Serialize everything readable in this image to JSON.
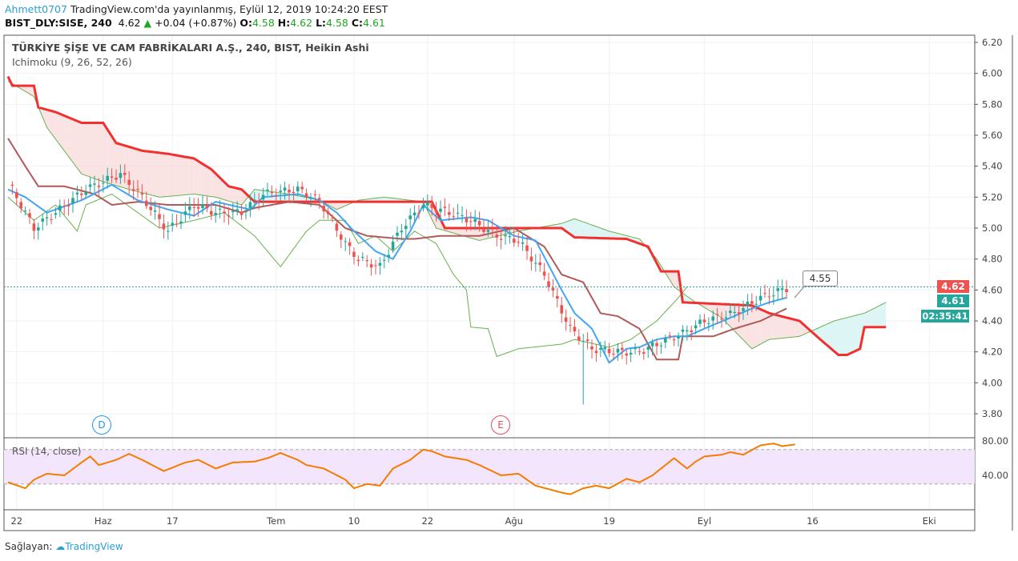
{
  "header": {
    "user": "Ahmett0707",
    "published": "TradingView.com'da yayınlanmış, Eylül 12, 2019 10:24:20 EEST",
    "symbol": "BIST_DLY:SISE, 240",
    "last": "4.62",
    "change": "+0.04 (+0.87%)",
    "o_label": "O:",
    "o": "4.58",
    "h_label": "H:",
    "h": "4.62",
    "l_label": "L:",
    "l": "4.58",
    "c_label": "C:",
    "c": "4.61"
  },
  "legend": {
    "title": "TÜRKİYE ŞİŞE VE CAM FABRİKALARI A.Ş., 240, BIST, Heikin Ashi",
    "indicator": "Ichimoku (9, 26, 52, 26)",
    "rsi": "RSI (14, close)"
  },
  "tags": {
    "price_red": "4.62",
    "price_green": "4.61",
    "countdown": "02:35:41",
    "callout": "4.55"
  },
  "markers": {
    "d": "D",
    "e": "E"
  },
  "footer": {
    "label": "Sağlayan:",
    "brand": "TradingView"
  },
  "colors": {
    "up": "#26a69a",
    "down": "#ef5350",
    "tenkan": "#42a5f5",
    "kijun": "#b05a5a",
    "spanB": "#f23030",
    "spanA": "#6aaf50",
    "rsi": "#f57c00"
  },
  "chart_data": {
    "type": "candlestick",
    "price_axis": {
      "ticks": [
        "6.20",
        "6.00",
        "5.80",
        "5.60",
        "5.40",
        "5.20",
        "5.00",
        "4.80",
        "4.60",
        "4.40",
        "4.20",
        "4.00",
        "3.80"
      ],
      "range": [
        3.75,
        6.25
      ]
    },
    "rsi_axis": {
      "ticks": [
        "80.00",
        "40.00"
      ],
      "bands": [
        70,
        30
      ]
    },
    "time_ticks": [
      {
        "label": "22",
        "bar": 2
      },
      {
        "label": "Haz",
        "bar": 22
      },
      {
        "label": "17",
        "bar": 38
      },
      {
        "label": "Tem",
        "bar": 62
      },
      {
        "label": "10",
        "bar": 80
      },
      {
        "label": "22",
        "bar": 97
      },
      {
        "label": "Ağu",
        "bar": 117
      },
      {
        "label": "19",
        "bar": 139
      },
      {
        "label": "Eyl",
        "bar": 161
      },
      {
        "label": "16",
        "bar": 186
      },
      {
        "label": "Eki",
        "bar": 213
      }
    ],
    "close": [
      [
        0,
        5.3
      ],
      [
        6,
        5.0
      ],
      [
        11,
        5.1
      ],
      [
        18,
        5.25
      ],
      [
        26,
        5.35
      ],
      [
        31,
        5.2
      ],
      [
        37,
        4.98
      ],
      [
        43,
        5.15
      ],
      [
        48,
        5.1
      ],
      [
        54,
        5.1
      ],
      [
        59,
        5.22
      ],
      [
        67,
        5.25
      ],
      [
        72,
        5.18
      ],
      [
        78,
        4.9
      ],
      [
        81,
        4.8
      ],
      [
        86,
        4.75
      ],
      [
        91,
        5.0
      ],
      [
        96,
        5.15
      ],
      [
        102,
        5.1
      ],
      [
        107,
        5.05
      ],
      [
        113,
        4.95
      ],
      [
        118,
        4.92
      ],
      [
        124,
        4.7
      ],
      [
        130,
        4.35
      ],
      [
        135,
        4.22
      ],
      [
        141,
        4.2
      ],
      [
        146,
        4.2
      ],
      [
        150,
        4.25
      ],
      [
        156,
        4.32
      ],
      [
        161,
        4.4
      ],
      [
        168,
        4.45
      ],
      [
        174,
        4.55
      ],
      [
        180,
        4.61
      ]
    ],
    "tenkan": [
      [
        0,
        5.25
      ],
      [
        4,
        5.2
      ],
      [
        9,
        5.1
      ],
      [
        17,
        5.18
      ],
      [
        24,
        5.28
      ],
      [
        30,
        5.18
      ],
      [
        37,
        5.12
      ],
      [
        43,
        5.08
      ],
      [
        48,
        5.17
      ],
      [
        56,
        5.12
      ],
      [
        59,
        5.2
      ],
      [
        67,
        5.22
      ],
      [
        72,
        5.18
      ],
      [
        76,
        5.1
      ],
      [
        80,
        4.98
      ],
      [
        85,
        4.85
      ],
      [
        89,
        4.8
      ],
      [
        93,
        4.98
      ],
      [
        96,
        5.15
      ],
      [
        100,
        5.05
      ],
      [
        107,
        5.07
      ],
      [
        111,
        5.05
      ],
      [
        117,
        4.95
      ],
      [
        122,
        4.92
      ],
      [
        128,
        4.6
      ],
      [
        131,
        4.45
      ],
      [
        135,
        4.35
      ],
      [
        139,
        4.13
      ],
      [
        143,
        4.22
      ],
      [
        146,
        4.23
      ],
      [
        150,
        4.28
      ],
      [
        154,
        4.3
      ],
      [
        157,
        4.3
      ],
      [
        161,
        4.35
      ],
      [
        167,
        4.42
      ],
      [
        172,
        4.48
      ],
      [
        176,
        4.52
      ],
      [
        180,
        4.55
      ]
    ],
    "kijun": [
      [
        0,
        5.58
      ],
      [
        4,
        5.4
      ],
      [
        7,
        5.27
      ],
      [
        13,
        5.27
      ],
      [
        20,
        5.22
      ],
      [
        24,
        5.15
      ],
      [
        30,
        5.17
      ],
      [
        37,
        5.15
      ],
      [
        48,
        5.15
      ],
      [
        54,
        5.1
      ],
      [
        57,
        5.13
      ],
      [
        65,
        5.17
      ],
      [
        72,
        5.15
      ],
      [
        78,
        5.0
      ],
      [
        83,
        4.95
      ],
      [
        91,
        4.93
      ],
      [
        94,
        4.93
      ],
      [
        100,
        4.95
      ],
      [
        109,
        4.95
      ],
      [
        117,
        5.0
      ],
      [
        124,
        4.88
      ],
      [
        128,
        4.7
      ],
      [
        133,
        4.65
      ],
      [
        137,
        4.45
      ],
      [
        141,
        4.43
      ],
      [
        146,
        4.35
      ],
      [
        150,
        4.15
      ],
      [
        155,
        4.15
      ],
      [
        156,
        4.3
      ],
      [
        163,
        4.3
      ],
      [
        168,
        4.35
      ],
      [
        174,
        4.4
      ],
      [
        180,
        4.48
      ]
    ],
    "span_a": [
      [
        0,
        5.95
      ],
      [
        6,
        5.85
      ],
      [
        9,
        5.65
      ],
      [
        13,
        5.5
      ],
      [
        17,
        5.35
      ],
      [
        22,
        5.3
      ],
      [
        28,
        5.25
      ],
      [
        35,
        5.2
      ],
      [
        43,
        5.22
      ],
      [
        48,
        5.2
      ],
      [
        54,
        5.15
      ],
      [
        57,
        5.25
      ],
      [
        65,
        5.22
      ],
      [
        72,
        5.18
      ],
      [
        76,
        5.12
      ],
      [
        81,
        5.18
      ],
      [
        87,
        5.2
      ],
      [
        96,
        5.17
      ],
      [
        99,
        5.0
      ],
      [
        109,
        4.92
      ],
      [
        118,
        4.98
      ],
      [
        128,
        5.03
      ],
      [
        131,
        5.06
      ],
      [
        139,
        4.98
      ],
      [
        146,
        4.93
      ],
      [
        150,
        4.8
      ],
      [
        154,
        4.62
      ],
      [
        159,
        4.52
      ],
      [
        165,
        4.42
      ],
      [
        172,
        4.22
      ],
      [
        176,
        4.28
      ],
      [
        183,
        4.3
      ],
      [
        191,
        4.4
      ],
      [
        198,
        4.45
      ],
      [
        203,
        4.52
      ]
    ],
    "span_b": [
      [
        0,
        5.98
      ],
      [
        1,
        5.92
      ],
      [
        6,
        5.92
      ],
      [
        7,
        5.78
      ],
      [
        11,
        5.75
      ],
      [
        17,
        5.68
      ],
      [
        22,
        5.68
      ],
      [
        25,
        5.55
      ],
      [
        31,
        5.5
      ],
      [
        37,
        5.48
      ],
      [
        43,
        5.45
      ],
      [
        47,
        5.38
      ],
      [
        51,
        5.27
      ],
      [
        54,
        5.25
      ],
      [
        57,
        5.17
      ],
      [
        78,
        5.17
      ],
      [
        98,
        5.17
      ],
      [
        101,
        5.0
      ],
      [
        128,
        5.0
      ],
      [
        131,
        4.94
      ],
      [
        143,
        4.93
      ],
      [
        148,
        4.88
      ],
      [
        151,
        4.72
      ],
      [
        155,
        4.72
      ],
      [
        156,
        4.52
      ],
      [
        172,
        4.5
      ],
      [
        176,
        4.45
      ],
      [
        183,
        4.4
      ],
      [
        187,
        4.3
      ],
      [
        192,
        4.18
      ],
      [
        194,
        4.18
      ],
      [
        197,
        4.22
      ],
      [
        198,
        4.36
      ],
      [
        203,
        4.36
      ]
    ],
    "chikou": [
      [
        0,
        5.2
      ],
      [
        6,
        5.05
      ],
      [
        11,
        5.15
      ],
      [
        16,
        4.98
      ],
      [
        18,
        5.15
      ],
      [
        24,
        5.22
      ],
      [
        30,
        5.1
      ],
      [
        35,
        5.0
      ],
      [
        43,
        5.05
      ],
      [
        50,
        5.1
      ],
      [
        57,
        4.95
      ],
      [
        63,
        4.75
      ],
      [
        69,
        4.98
      ],
      [
        72,
        5.05
      ],
      [
        78,
        5.05
      ],
      [
        81,
        4.9
      ],
      [
        85,
        4.95
      ],
      [
        89,
        4.85
      ],
      [
        94,
        4.98
      ],
      [
        99,
        4.9
      ],
      [
        103,
        4.7
      ],
      [
        106,
        4.6
      ],
      [
        107,
        4.36
      ],
      [
        111,
        4.35
      ],
      [
        113,
        4.17
      ],
      [
        118,
        4.22
      ],
      [
        128,
        4.25
      ],
      [
        131,
        4.28
      ],
      [
        139,
        4.23
      ],
      [
        144,
        4.28
      ],
      [
        150,
        4.4
      ],
      [
        155,
        4.55
      ],
      [
        157,
        4.62
      ]
    ],
    "rsi": [
      [
        0,
        32
      ],
      [
        4,
        25
      ],
      [
        6,
        35
      ],
      [
        9,
        42
      ],
      [
        13,
        40
      ],
      [
        17,
        55
      ],
      [
        19,
        62
      ],
      [
        21,
        52
      ],
      [
        25,
        58
      ],
      [
        28,
        65
      ],
      [
        31,
        58
      ],
      [
        36,
        45
      ],
      [
        41,
        55
      ],
      [
        44,
        58
      ],
      [
        48,
        48
      ],
      [
        52,
        55
      ],
      [
        57,
        56
      ],
      [
        60,
        60
      ],
      [
        63,
        66
      ],
      [
        67,
        58
      ],
      [
        69,
        52
      ],
      [
        73,
        48
      ],
      [
        78,
        35
      ],
      [
        80,
        25
      ],
      [
        83,
        30
      ],
      [
        86,
        28
      ],
      [
        89,
        48
      ],
      [
        93,
        58
      ],
      [
        96,
        70
      ],
      [
        98,
        68
      ],
      [
        101,
        62
      ],
      [
        106,
        58
      ],
      [
        109,
        52
      ],
      [
        114,
        40
      ],
      [
        118,
        42
      ],
      [
        122,
        28
      ],
      [
        128,
        20
      ],
      [
        130,
        18
      ],
      [
        133,
        25
      ],
      [
        136,
        28
      ],
      [
        139,
        25
      ],
      [
        143,
        36
      ],
      [
        146,
        32
      ],
      [
        149,
        40
      ],
      [
        154,
        60
      ],
      [
        157,
        48
      ],
      [
        159,
        56
      ],
      [
        161,
        62
      ],
      [
        165,
        64
      ],
      [
        167,
        67
      ],
      [
        170,
        64
      ],
      [
        174,
        75
      ],
      [
        177,
        77
      ],
      [
        179,
        74
      ],
      [
        182,
        76
      ]
    ]
  }
}
